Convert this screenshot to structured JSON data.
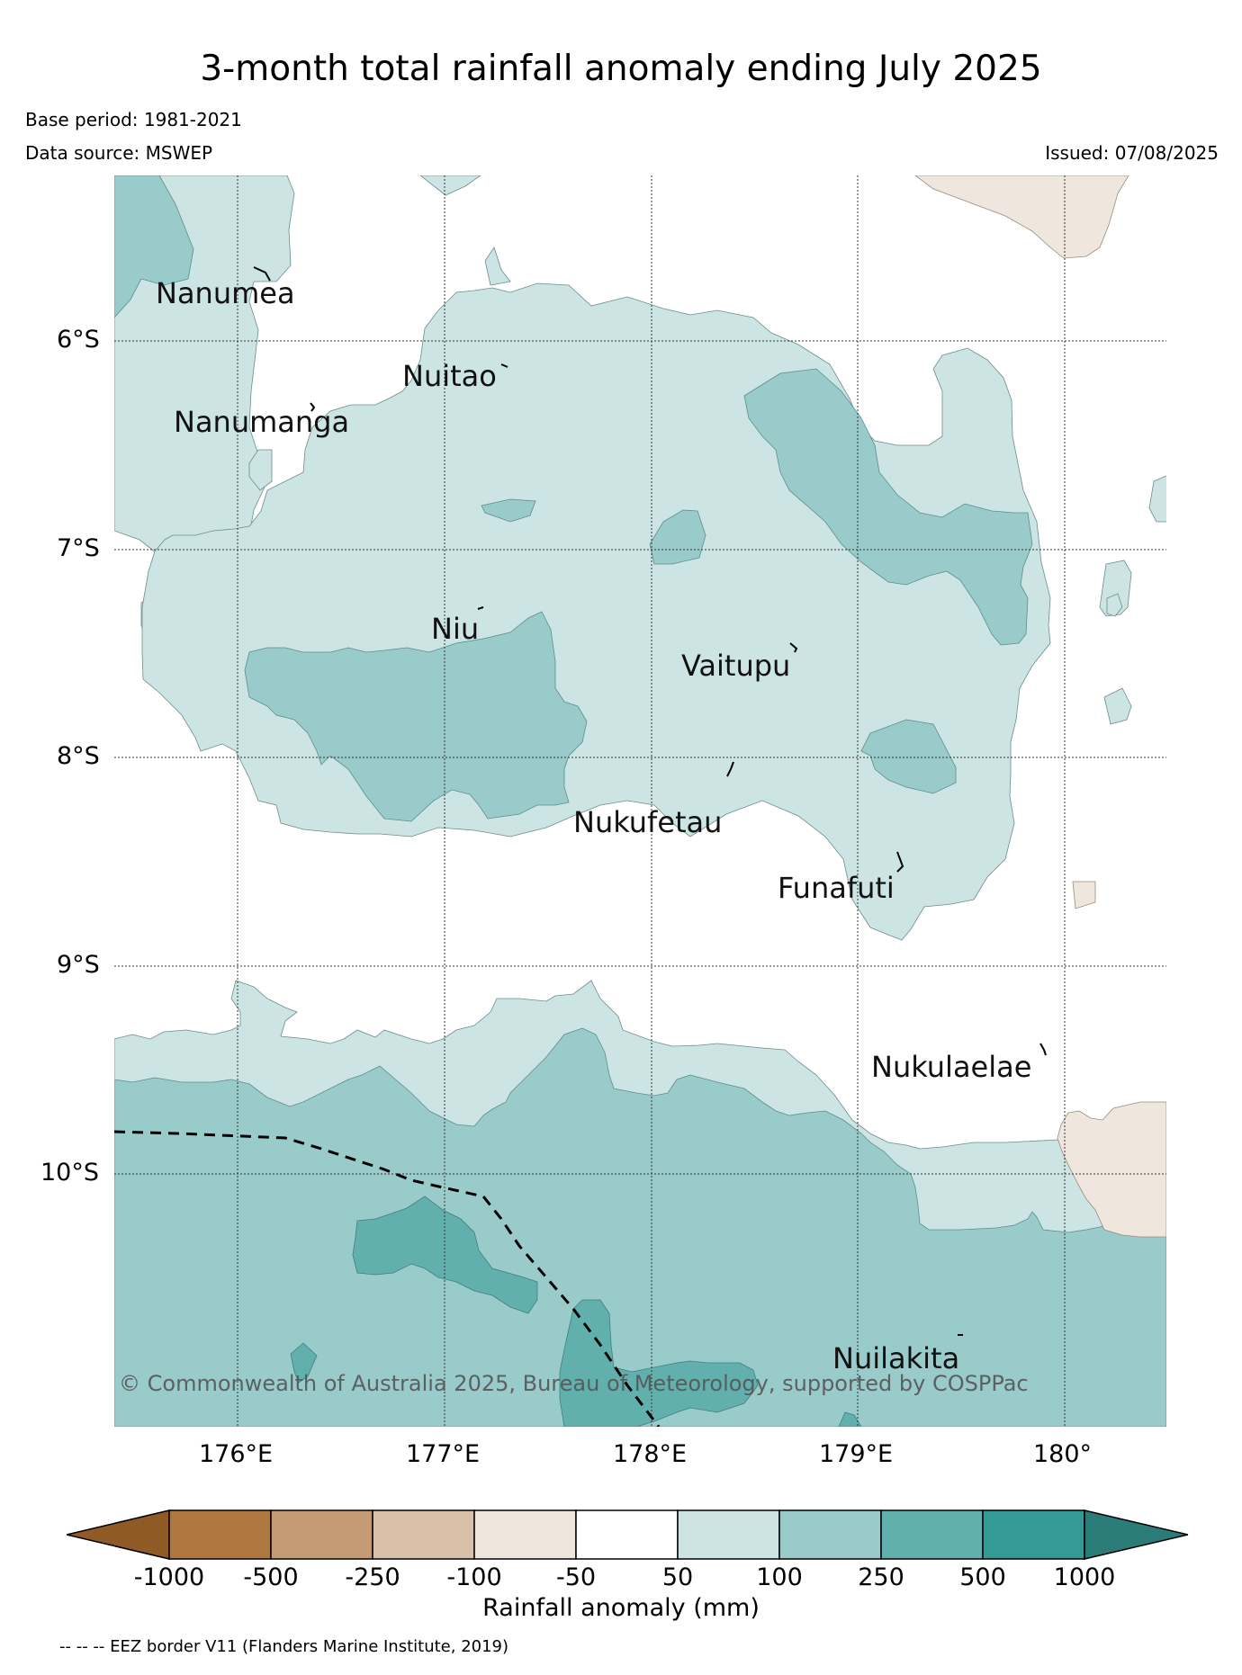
{
  "title": "3-month total rainfall anomaly ending July 2025",
  "base_period": "Base period: 1981-2021",
  "data_source": "Data source: MSWEP",
  "issued": "Issued: 07/08/2025",
  "copyright": "© Commonwealth of Australia 2025, Bureau of Meteorology, supported by COSPPac",
  "lat_labels": [
    "6°S",
    "7°S",
    "8°S",
    "9°S",
    "10°S"
  ],
  "lon_labels": [
    "176°E",
    "177°E",
    "178°E",
    "179°E",
    "180°"
  ],
  "places": [
    "Nanumea",
    "Nuitao",
    "Nanumanga",
    "Niu",
    "Vaitupu",
    "Nukufetau",
    "Funafuti",
    "Nukulaelae",
    "Nuilakita"
  ],
  "colorbar": {
    "label": "Rainfall anomaly (mm)",
    "ticks": [
      "-1000",
      "-500",
      "-250",
      "-100",
      "-50",
      "50",
      "100",
      "250",
      "500",
      "1000"
    ],
    "colors": [
      "#905a27",
      "#ae773f",
      "#c49b74",
      "#d9c0a8",
      "#efe6dd",
      "#ffffff",
      "#cce5e4",
      "#99cbca",
      "#62b0ae",
      "#339a96",
      "#2b7b78"
    ]
  },
  "footnote": "-- -- -- EEZ border V11 (Flanders Marine Institute, 2019)"
}
